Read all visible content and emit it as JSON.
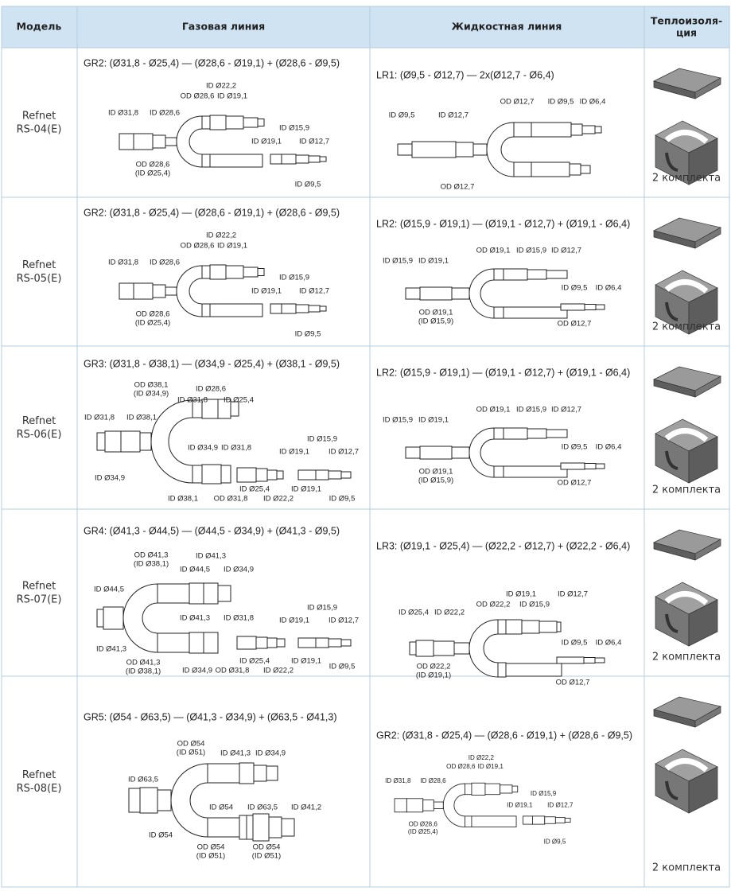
{
  "header": [
    "Модель",
    "Газовая линия",
    "Жидкостная линия",
    "Теплоизоля-\nция"
  ],
  "rows": [
    {
      "model": "Refnet\nRS-04(E)",
      "gas": {
        "formula": "GR2: (Ø31,8 - Ø25,4) — (Ø28,6 - Ø19,1) + (Ø28,6 - Ø9,5)",
        "labels": [
          "ID Ø22,2",
          "OD Ø28,6",
          "ID Ø19,1",
          "ID Ø31,8",
          "ID Ø28,6",
          "ID Ø15,9",
          "ID Ø19,1",
          "ID Ø12,7",
          "OD Ø28,6\n(ID Ø25,4)",
          "ID Ø9,5"
        ]
      },
      "liquid": {
        "formula": "LR1: (Ø9,5 - Ø12,7) — 2x(Ø12,7 - Ø6,4)",
        "labels": [
          "ID Ø9,5",
          "ID Ø12,7",
          "OD Ø12,7",
          "ID Ø9,5",
          "ID Ø6,4",
          "OD Ø12,7"
        ]
      },
      "insulation": "2 комплекта"
    },
    {
      "model": "Refnet\nRS-05(E)",
      "gas": {
        "formula": "GR2: (Ø31,8 - Ø25,4) — (Ø28,6 - Ø19,1) + (Ø28,6 - Ø9,5)",
        "labels": [
          "ID Ø22,2",
          "OD Ø28,6",
          "ID Ø19,1",
          "ID Ø31,8",
          "ID Ø28,6",
          "ID Ø15,9",
          "ID Ø19,1",
          "ID Ø12,7",
          "OD Ø28,6\n(ID Ø25,4)",
          "ID Ø9,5"
        ]
      },
      "liquid": {
        "formula": "LR2: (Ø15,9 - Ø19,1) — (Ø19,1 - Ø12,7) + (Ø19,1 - Ø6,4)",
        "labels": [
          "ID Ø15,9",
          "ID Ø19,1",
          "OD Ø19,1",
          "ID Ø15,9",
          "ID Ø12,7",
          "OD Ø19,1\n(ID Ø15,9)",
          "ID Ø9,5",
          "ID Ø6,4",
          "OD Ø12,7"
        ]
      },
      "insulation": "2 комплекта"
    },
    {
      "model": "Refnet\nRS-06(E)",
      "gas": {
        "formula": "GR3: (Ø31,8 - Ø38,1) — (Ø34,9 - Ø25,4) + (Ø38,1 - Ø9,5)",
        "labels": [
          "OD Ø38,1\n(ID Ø34,9)",
          "ID Ø28,6",
          "ID Ø31,8",
          "ID Ø25,4",
          "ID Ø31,8",
          "ID Ø38,1",
          "ID Ø34,9",
          "ID Ø34,9",
          "ID Ø31,8",
          "ID Ø15,9",
          "ID Ø19,1",
          "ID Ø12,7",
          "ID Ø25,4",
          "ID Ø38,1",
          "OD Ø31,8",
          "ID Ø22,2",
          "ID Ø19,1",
          "ID Ø9,5"
        ]
      },
      "liquid": {
        "formula": "LR2: (Ø15,9 - Ø19,1) — (Ø19,1 - Ø12,7) + (Ø19,1 - Ø6,4)",
        "labels": [
          "ID Ø15,9",
          "ID Ø19,1",
          "OD Ø19,1",
          "ID Ø15,9",
          "ID Ø12,7",
          "OD Ø19,1\n(ID Ø15,9)",
          "ID Ø9,5",
          "ID Ø6,4",
          "OD Ø12,7"
        ]
      },
      "insulation": "2 комплекта"
    },
    {
      "model": "Refnet\nRS-07(E)",
      "gas": {
        "formula": "GR4: (Ø41,3 - Ø44,5) — (Ø44,5 - Ø34,9) + (Ø41,3 - Ø9,5)",
        "labels": [
          "OD Ø41,3\n(ID Ø38,1)",
          "ID Ø41,3",
          "ID Ø44,5",
          "ID Ø34,9",
          "ID Ø44,5",
          "ID Ø41,3",
          "ID Ø41,3",
          "ID Ø31,8",
          "ID Ø15,9",
          "ID Ø19,1",
          "ID Ø12,7",
          "OD Ø41,3\n(ID Ø38,1)",
          "ID Ø34,9",
          "ID Ø25,4",
          "OD Ø31,8",
          "ID Ø19,1",
          "ID Ø22,2",
          "ID Ø9,5"
        ]
      },
      "liquid": {
        "formula": "LR3: (Ø19,1 - Ø25,4) — (Ø22,2 - Ø12,7) + (Ø22,2 - Ø6,4)",
        "labels": [
          "ID Ø19,1",
          "ID Ø12,7",
          "ID Ø25,4",
          "ID Ø22,2",
          "OD Ø22,2",
          "ID Ø15,9",
          "ID Ø9,5",
          "ID Ø6,4",
          "OD Ø22,2\n(ID Ø19,1)",
          "OD Ø12,7"
        ]
      },
      "insulation": "2 комплекта"
    },
    {
      "model": "Refnet\nRS-08(E)",
      "gas": {
        "formula": "GR5: (Ø54 - Ø63,5) — (Ø41,3 - Ø34,9) + (Ø63,5 - Ø41,3)",
        "labels": [
          "OD Ø54\n(ID Ø51)",
          "ID Ø41,3",
          "ID Ø34,9",
          "ID Ø63,5",
          "ID Ø54",
          "ID Ø54",
          "ID Ø63,5",
          "ID Ø41,2",
          "OD Ø54\n(ID Ø51)",
          "OD Ø54\n(ID Ø51)"
        ]
      },
      "liquid": {
        "formula": "GR2: (Ø31,8 - Ø25,4) — (Ø28,6 - Ø19,1) + (Ø28,6 - Ø9,5)",
        "labels": [
          "ID Ø22,2",
          "OD Ø28,6",
          "ID Ø19,1",
          "ID Ø31,8",
          "ID Ø28,6",
          "ID Ø15,9",
          "ID Ø19,1",
          "ID Ø12,7",
          "OD Ø28,6\n(ID Ø25,4)",
          "ID Ø9,5"
        ]
      },
      "insulation": "2 комплекта"
    }
  ]
}
